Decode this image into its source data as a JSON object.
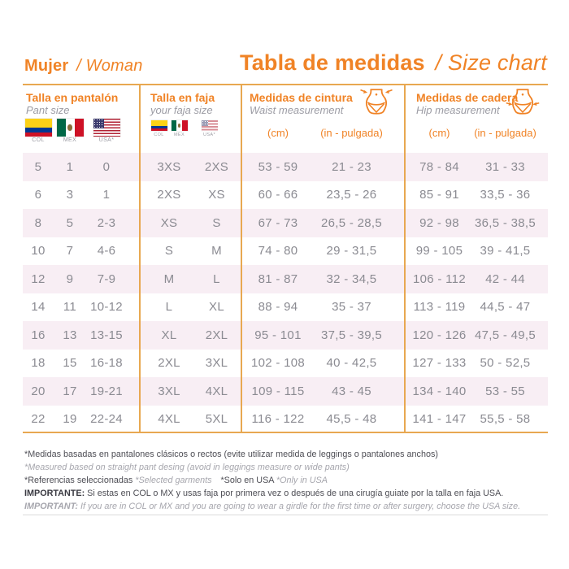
{
  "header": {
    "section_title": "Mujer",
    "section_subtitle": "/ Woman",
    "main_title": "Tabla de medidas",
    "main_subtitle": "/ Size chart"
  },
  "table": {
    "groups": {
      "pant": {
        "title": "Talla en pantalón",
        "subtitle": "Pant size",
        "flag_labels": [
          "COL",
          "MEX",
          "USA*"
        ]
      },
      "faja": {
        "title": "Talla en faja",
        "subtitle": "your faja size",
        "flag_labels": [
          "COL",
          "MEX",
          "USA*"
        ]
      },
      "waist": {
        "title": "Medidas de cintura",
        "subtitle": "Waist measurement",
        "unit_cm": "(cm)",
        "unit_in": "(in - pulgada)"
      },
      "hip": {
        "title": "Medidas de cadera",
        "subtitle": "Hip measurement",
        "unit_cm": "(cm)",
        "unit_in": "(in - pulgada)"
      }
    },
    "rows": [
      {
        "pant_col": "5",
        "pant_mex": "1",
        "pant_usa": "0",
        "faja_colmex": "3XS",
        "faja_usa": "2XS",
        "waist_cm": "53 - 59",
        "waist_in": "21 - 23",
        "hip_cm": "78 - 84",
        "hip_in": "31 - 33"
      },
      {
        "pant_col": "6",
        "pant_mex": "3",
        "pant_usa": "1",
        "faja_colmex": "2XS",
        "faja_usa": "XS",
        "waist_cm": "60 - 66",
        "waist_in": "23,5 - 26",
        "hip_cm": "85 - 91",
        "hip_in": "33,5 - 36"
      },
      {
        "pant_col": "8",
        "pant_mex": "5",
        "pant_usa": "2-3",
        "faja_colmex": "XS",
        "faja_usa": "S",
        "waist_cm": "67 - 73",
        "waist_in": "26,5 - 28,5",
        "hip_cm": "92 - 98",
        "hip_in": "36,5 - 38,5"
      },
      {
        "pant_col": "10",
        "pant_mex": "7",
        "pant_usa": "4-6",
        "faja_colmex": "S",
        "faja_usa": "M",
        "waist_cm": "74 - 80",
        "waist_in": "29 - 31,5",
        "hip_cm": "99 - 105",
        "hip_in": "39 - 41,5"
      },
      {
        "pant_col": "12",
        "pant_mex": "9",
        "pant_usa": "7-9",
        "faja_colmex": "M",
        "faja_usa": "L",
        "waist_cm": "81 - 87",
        "waist_in": "32 - 34,5",
        "hip_cm": "106 - 112",
        "hip_in": "42 - 44"
      },
      {
        "pant_col": "14",
        "pant_mex": "11",
        "pant_usa": "10-12",
        "faja_colmex": "L",
        "faja_usa": "XL",
        "waist_cm": "88 - 94",
        "waist_in": "35 - 37",
        "hip_cm": "113 - 119",
        "hip_in": "44,5 - 47"
      },
      {
        "pant_col": "16",
        "pant_mex": "13",
        "pant_usa": "13-15",
        "faja_colmex": "XL",
        "faja_usa": "2XL",
        "waist_cm": "95 - 101",
        "waist_in": "37,5 - 39,5",
        "hip_cm": "120 - 126",
        "hip_in": "47,5 - 49,5"
      },
      {
        "pant_col": "18",
        "pant_mex": "15",
        "pant_usa": "16-18",
        "faja_colmex": "2XL",
        "faja_usa": "3XL",
        "waist_cm": "102 - 108",
        "waist_in": "40 - 42,5",
        "hip_cm": "127 - 133",
        "hip_in": "50 - 52,5"
      },
      {
        "pant_col": "20",
        "pant_mex": "17",
        "pant_usa": "19-21",
        "faja_colmex": "3XL",
        "faja_usa": "4XL",
        "waist_cm": "109 - 115",
        "waist_in": "43 - 45",
        "hip_cm": "134 - 140",
        "hip_in": "53 - 55"
      },
      {
        "pant_col": "22",
        "pant_mex": "19",
        "pant_usa": "22-24",
        "faja_colmex": "4XL",
        "faja_usa": "5XL",
        "waist_cm": "116 - 122",
        "waist_in": "45,5 - 48",
        "hip_cm": "141 - 147",
        "hip_in": "55,5 - 58"
      }
    ]
  },
  "footnotes": {
    "note_es": "*Medidas basadas en pantalones clásicos o rectos (evite utilizar medida de leggings o pantalones anchos)",
    "note_en": "*Measured based on straight pant desing (avoid in leggings measure or wide pants)",
    "ref_es": "*Referencias seleccionadas",
    "ref_en": "*Selected garments",
    "usa_es": "*Solo en USA",
    "usa_en": "*Only in USA",
    "important_es_label": "IMPORTANTE:",
    "important_es": " Si estas en COL o MX y usas faja por primera vez o después de una cirugía guiate por la talla en faja USA.",
    "important_en_label": "IMPORTANT:",
    "important_en": " If you are in COL or MX and you are going to wear a girdle for the first time or after surgery, choose the USA size."
  },
  "colors": {
    "accent": "#F08326",
    "table_line": "#E8A851",
    "row_stripe": "#F8EEF4",
    "cell_text": "#8B8B92"
  }
}
